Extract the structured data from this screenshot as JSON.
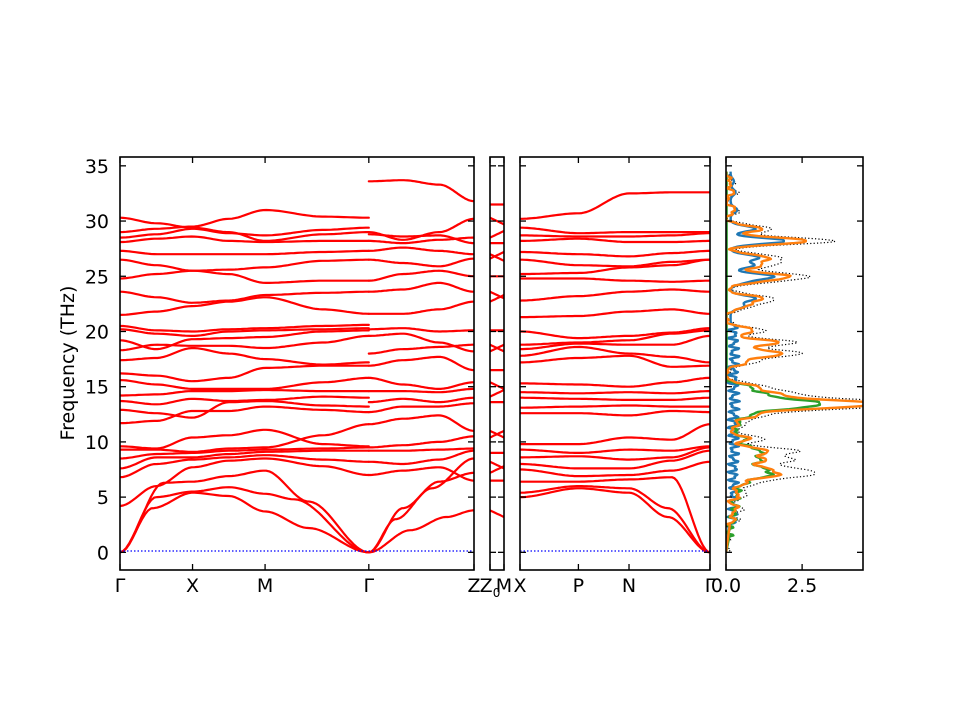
{
  "chart_data": {
    "type": "line",
    "ylabel": "Frequency (THz)",
    "ylim": [
      -1.6,
      35.8
    ],
    "y_ticks": [
      "0",
      "5",
      "10",
      "15",
      "20",
      "25",
      "30",
      "35"
    ],
    "band_color": "#ff0000",
    "zero_line_color": "#0000ff",
    "segments": [
      {
        "labels": [
          "Γ",
          "X",
          "M",
          "Γ",
          "Z"
        ],
        "label_positions": [
          0,
          1.0,
          2.0,
          3.43,
          4.88
        ],
        "path_length": 4.88,
        "discontinuity_at": 3.43
      },
      {
        "labels": [
          "Z0",
          "M"
        ],
        "label_positions": [
          0,
          0.17
        ],
        "path_length": 0.17
      },
      {
        "labels": [
          "X",
          "P",
          "N",
          "Γ"
        ],
        "label_positions": [
          0,
          1.5,
          2.8,
          4.88
        ],
        "path_length": 4.88
      }
    ],
    "dos": {
      "xlim": [
        0,
        4.5
      ],
      "x_ticks": [
        "0.0",
        "2.5"
      ],
      "series": [
        {
          "color": "#000000",
          "style": "dotted"
        },
        {
          "color": "#1f77b4",
          "style": "solid"
        },
        {
          "color": "#ff7f0e",
          "style": "solid"
        },
        {
          "color": "#2ca02c",
          "style": "solid"
        }
      ],
      "peaks_total": [
        [
          3.0,
          0.35
        ],
        [
          4.0,
          0.5
        ],
        [
          5.2,
          0.7
        ],
        [
          6.2,
          0.9
        ],
        [
          7.0,
          2.5
        ],
        [
          7.6,
          1.8
        ],
        [
          8.4,
          2.0
        ],
        [
          9.2,
          2.2
        ],
        [
          10.3,
          1.2
        ],
        [
          11.5,
          0.6
        ],
        [
          12.4,
          1.2
        ],
        [
          13.2,
          3.7
        ],
        [
          13.6,
          4.2
        ],
        [
          14.3,
          2.0
        ],
        [
          15.0,
          1.2
        ],
        [
          17.2,
          0.8
        ],
        [
          18.0,
          2.4
        ],
        [
          19.0,
          2.2
        ],
        [
          20.1,
          1.2
        ],
        [
          22.3,
          0.8
        ],
        [
          23.0,
          1.5
        ],
        [
          24.5,
          0.8
        ],
        [
          25.0,
          2.5
        ],
        [
          26.0,
          1.4
        ],
        [
          26.7,
          1.7
        ],
        [
          28.2,
          3.5
        ],
        [
          29.3,
          1.5
        ],
        [
          31.0,
          0.4
        ],
        [
          32.6,
          0.3
        ],
        [
          33.6,
          0.2
        ]
      ]
    }
  }
}
